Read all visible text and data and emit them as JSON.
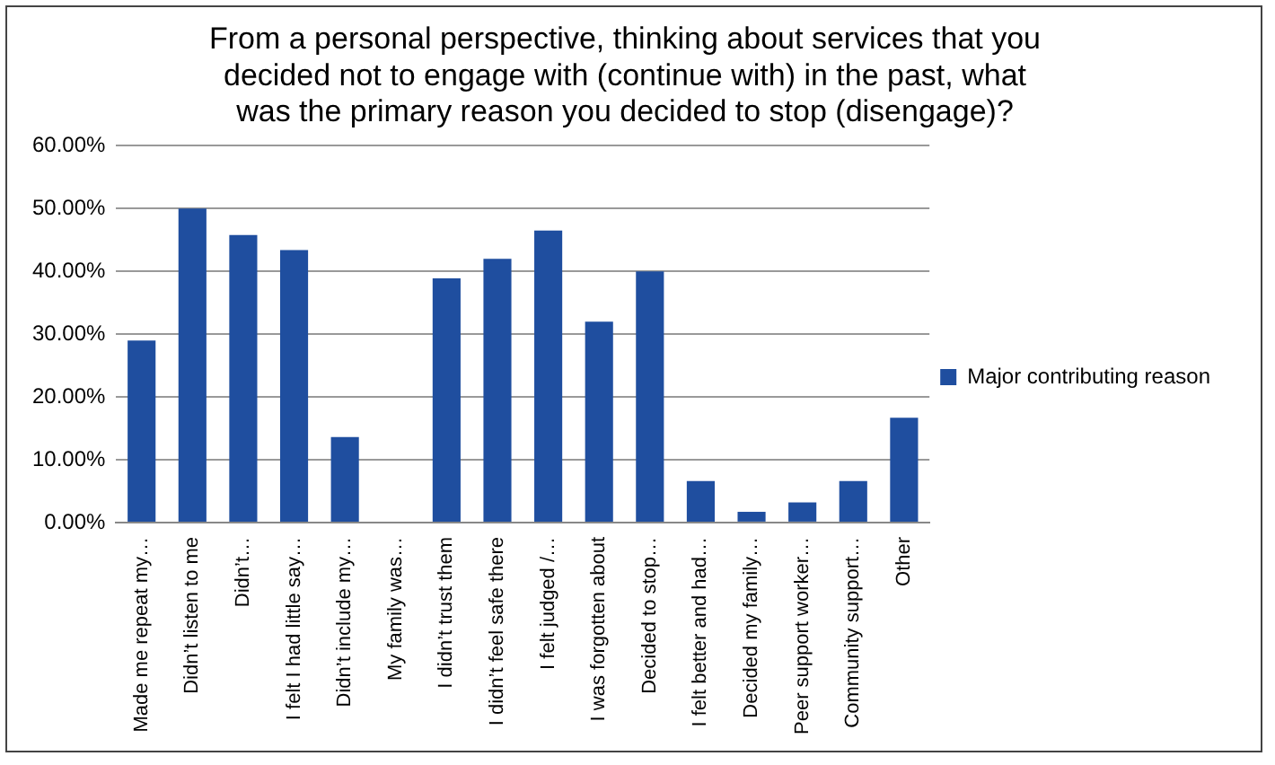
{
  "chart_data": {
    "type": "bar",
    "title": "From a personal perspective, thinking about services that you decided not to engage with (continue with) in the past, what was the primary reason you decided to stop (disengage)?",
    "categories": [
      "Made me repeat my…",
      "Didn’t listen to me",
      "Didn’t…",
      "I felt I had little say…",
      "Didn’t include my…",
      "My family was…",
      "I didn’t trust them",
      "I didn’t feel safe there",
      "I felt judged /…",
      "I was forgotten about",
      "Decided to stop…",
      "I felt better and had…",
      "Decided my family…",
      "Peer support worker…",
      "Community support…",
      "Other"
    ],
    "series": [
      {
        "name": "Major contributing reason",
        "color": "#1f4e9f",
        "values": [
          29,
          50,
          45.8,
          43.4,
          13.6,
          0,
          38.9,
          42,
          46.5,
          32,
          40,
          6.6,
          1.7,
          3.2,
          6.6,
          16.7
        ]
      }
    ],
    "ylim": [
      0,
      60
    ],
    "yticks": [
      {
        "value": 0,
        "label": "0.00%"
      },
      {
        "value": 10,
        "label": "10.00%"
      },
      {
        "value": 20,
        "label": "20.00%"
      },
      {
        "value": 30,
        "label": "30.00%"
      },
      {
        "value": 40,
        "label": "40.00%"
      },
      {
        "value": 50,
        "label": "50.00%"
      },
      {
        "value": 60,
        "label": "60.00%"
      }
    ],
    "grid": "y",
    "legend": "right"
  }
}
